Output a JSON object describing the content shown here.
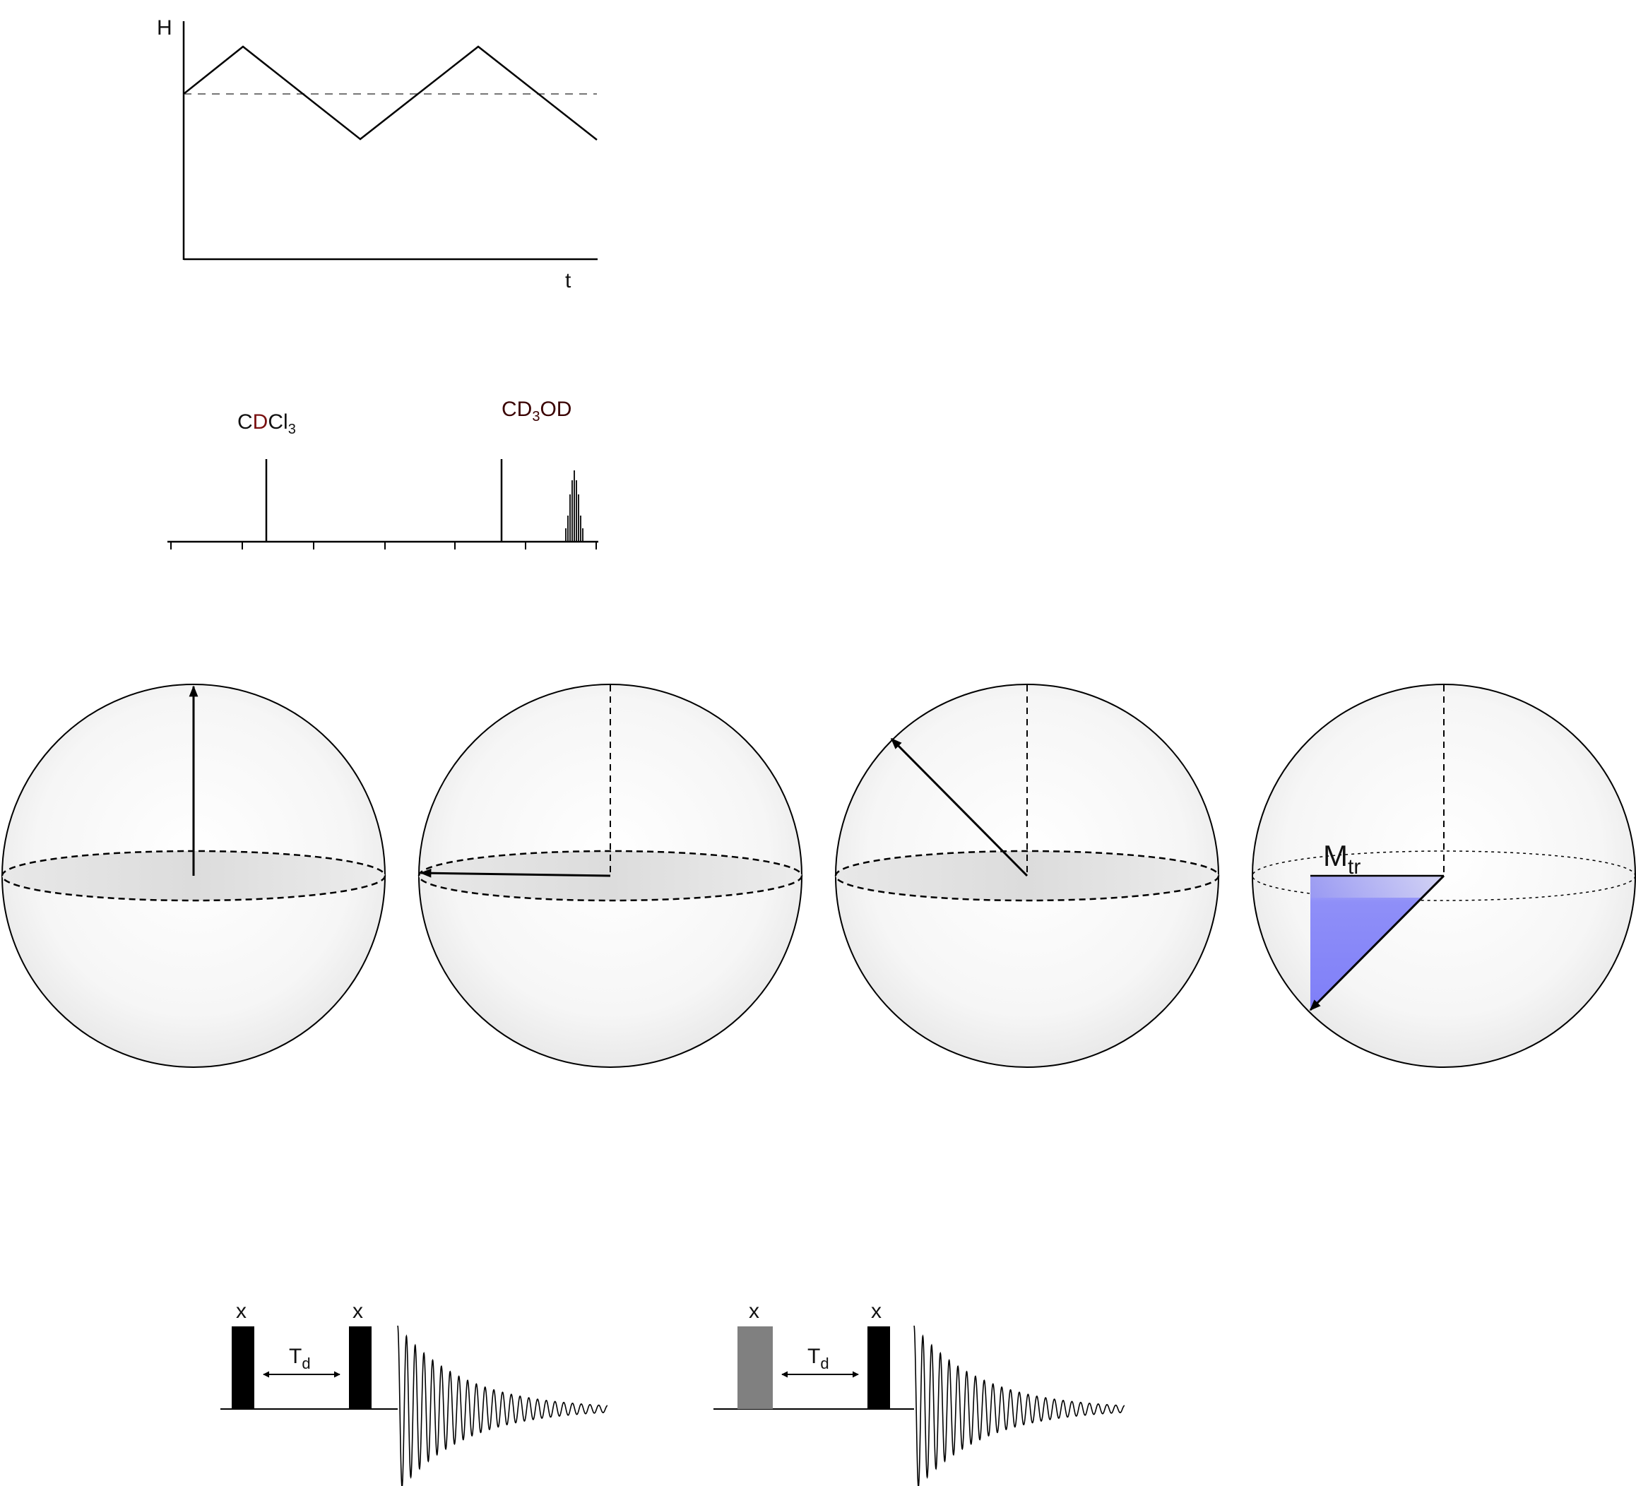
{
  "field_plot": {
    "y_axis_label": "H",
    "x_axis_label": "t"
  },
  "spectrum": {
    "peak1_label": {
      "c": "C",
      "d": "D",
      "rest": "Cl",
      "sub": "3"
    },
    "peak2_label": {
      "c": "C",
      "d": "D",
      "sub": "3",
      "rest": "OD"
    }
  },
  "bloch_spheres": {
    "transverse_label": {
      "main": "M",
      "sub": "tr"
    }
  },
  "pulse_sequences": [
    {
      "pulse1_label": "x",
      "pulse2_label": "x",
      "delay_label": {
        "main": "T",
        "sub": "d"
      },
      "pulse1_color": "#000000"
    },
    {
      "pulse1_label": "x",
      "pulse2_label": "x",
      "delay_label": {
        "main": "T",
        "sub": "d"
      },
      "pulse1_color": "#808080"
    }
  ],
  "colors": {
    "pulse_black": "#000000",
    "pulse_gray": "#808080",
    "triangle_fill": "#7f7ff8"
  }
}
